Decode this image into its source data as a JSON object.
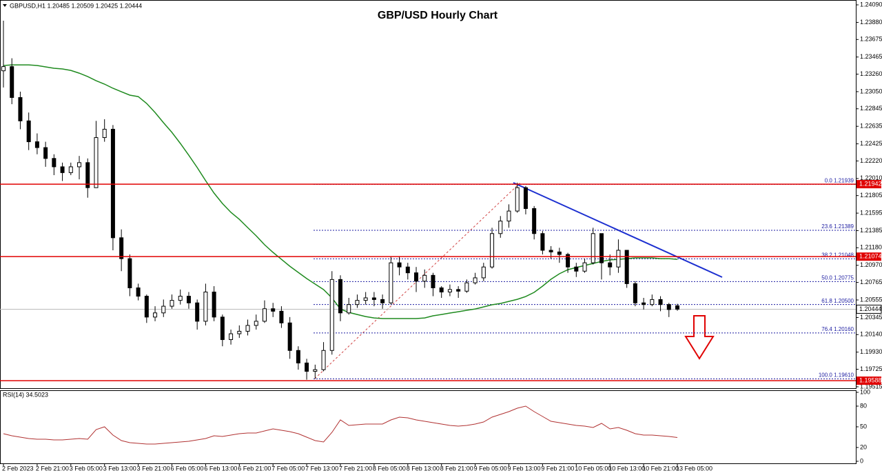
{
  "header": "GBPUSD,H1  1.20485 1.20509 1.20425 1.20444",
  "chart_data": [
    {
      "type": "candlestick",
      "title": "GBP/USD Hourly Chart",
      "categories": [
        "2 Feb 2023",
        null,
        null,
        null,
        "2 Feb 21:00",
        null,
        null,
        null,
        "3 Feb 05:00",
        null,
        null,
        null,
        "3 Feb 13:00",
        null,
        null,
        null,
        "3 Feb 21:00",
        null,
        null,
        null,
        "6 Feb 05:00",
        null,
        null,
        null,
        "6 Feb 13:00",
        null,
        null,
        null,
        "6 Feb 21:00",
        null,
        null,
        null,
        "7 Feb 05:00",
        null,
        null,
        null,
        "7 Feb 13:00",
        null,
        null,
        null,
        "7 Feb 21:00",
        null,
        null,
        null,
        "8 Feb 05:00",
        null,
        null,
        null,
        "8 Feb 13:00",
        null,
        null,
        null,
        "8 Feb 21:00",
        null,
        null,
        null,
        "9 Feb 05:00",
        null,
        null,
        null,
        "9 Feb 13:00",
        null,
        null,
        null,
        "9 Feb 21:00",
        null,
        null,
        null,
        "10 Feb 05:00",
        null,
        null,
        null,
        "10 Feb 13:00",
        null,
        null,
        null,
        "10 Feb 21:00",
        null,
        null,
        null,
        "13 Feb 05:00"
      ],
      "ohlc": [
        [
          1.233,
          1.239,
          1.231,
          1.2335
        ],
        [
          1.2335,
          1.2345,
          1.229,
          1.2298
        ],
        [
          1.2298,
          1.2305,
          1.226,
          1.227
        ],
        [
          1.227,
          1.228,
          1.2235,
          1.2245
        ],
        [
          1.2245,
          1.2255,
          1.223,
          1.2238
        ],
        [
          1.2238,
          1.2245,
          1.2215,
          1.2225
        ],
        [
          1.2225,
          1.223,
          1.2205,
          1.2215
        ],
        [
          1.2215,
          1.222,
          1.2198,
          1.2208
        ],
        [
          1.2208,
          1.222,
          1.2205,
          1.2215
        ],
        [
          1.2215,
          1.2228,
          1.22,
          1.222
        ],
        [
          1.222,
          1.2225,
          1.2178,
          1.219
        ],
        [
          1.219,
          1.227,
          1.219,
          1.225
        ],
        [
          1.225,
          1.2272,
          1.2245,
          1.226
        ],
        [
          1.226,
          1.2265,
          1.2115,
          1.213
        ],
        [
          1.213,
          1.214,
          1.209,
          1.2105
        ],
        [
          1.2105,
          1.211,
          1.206,
          1.207
        ],
        [
          1.207,
          1.2075,
          1.2055,
          1.206
        ],
        [
          1.206,
          1.2062,
          1.2028,
          1.2035
        ],
        [
          1.2035,
          1.2048,
          1.203,
          1.204
        ],
        [
          1.204,
          1.2056,
          1.2035,
          1.2048
        ],
        [
          1.2048,
          1.2062,
          1.2045,
          1.2055
        ],
        [
          1.2055,
          1.2068,
          1.205,
          1.206
        ],
        [
          1.206,
          1.2065,
          1.2045,
          1.2052
        ],
        [
          1.2052,
          1.2056,
          1.202,
          1.203
        ],
        [
          1.203,
          1.2075,
          1.2025,
          1.2065
        ],
        [
          1.2065,
          1.2072,
          1.203,
          1.2035
        ],
        [
          1.2035,
          1.2038,
          1.2,
          1.2008
        ],
        [
          1.2008,
          1.202,
          1.2002,
          1.2015
        ],
        [
          1.2015,
          1.2025,
          1.201,
          1.2018
        ],
        [
          1.2018,
          1.2032,
          1.2013,
          1.2025
        ],
        [
          1.2025,
          1.2038,
          1.202,
          1.203
        ],
        [
          1.203,
          1.2055,
          1.2028,
          1.2045
        ],
        [
          1.2045,
          1.2052,
          1.2035,
          1.2042
        ],
        [
          1.2042,
          1.2048,
          1.2022,
          1.2028
        ],
        [
          1.2028,
          1.2035,
          1.1985,
          1.1995
        ],
        [
          1.1995,
          1.2,
          1.1972,
          1.198
        ],
        [
          1.198,
          1.1985,
          1.196,
          1.197
        ],
        [
          1.197,
          1.1978,
          1.1961,
          1.1972
        ],
        [
          1.1972,
          1.2005,
          1.197,
          1.1995
        ],
        [
          1.1995,
          1.209,
          1.199,
          1.208
        ],
        [
          1.208,
          1.2085,
          1.203,
          1.204
        ],
        [
          1.204,
          1.2058,
          1.2038,
          1.205
        ],
        [
          1.205,
          1.2062,
          1.2046,
          1.2055
        ],
        [
          1.2055,
          1.2065,
          1.205,
          1.2058
        ],
        [
          1.2058,
          1.2065,
          1.2048,
          1.2056
        ],
        [
          1.2056,
          1.2062,
          1.2045,
          1.2052
        ],
        [
          1.2052,
          1.2108,
          1.205,
          1.21
        ],
        [
          1.21,
          1.2108,
          1.2085,
          1.2095
        ],
        [
          1.2095,
          1.21,
          1.208,
          1.2088
        ],
        [
          1.2088,
          1.2095,
          1.2065,
          1.2078
        ],
        [
          1.2078,
          1.2092,
          1.207,
          1.2085
        ],
        [
          1.2085,
          1.2088,
          1.206,
          1.207
        ],
        [
          1.207,
          1.2072,
          1.2058,
          1.2065
        ],
        [
          1.2065,
          1.2074,
          1.206,
          1.2068
        ],
        [
          1.2068,
          1.2072,
          1.2058,
          1.2066
        ],
        [
          1.2066,
          1.208,
          1.2064,
          1.2076
        ],
        [
          1.2076,
          1.2088,
          1.2074,
          1.2082
        ],
        [
          1.2082,
          1.21,
          1.2078,
          1.2095
        ],
        [
          1.2095,
          1.2142,
          1.2093,
          1.2135
        ],
        [
          1.2135,
          1.2156,
          1.213,
          1.215
        ],
        [
          1.215,
          1.217,
          1.2142,
          1.2162
        ],
        [
          1.2162,
          1.2196,
          1.216,
          1.219
        ],
        [
          1.219,
          1.2192,
          1.2158,
          1.2165
        ],
        [
          1.2165,
          1.2168,
          1.2128,
          1.2135
        ],
        [
          1.2135,
          1.2138,
          1.211,
          1.2115
        ],
        [
          1.2115,
          1.212,
          1.2105,
          1.2113
        ],
        [
          1.2113,
          1.2118,
          1.21,
          1.211
        ],
        [
          1.211,
          1.2112,
          1.2088,
          1.2095
        ],
        [
          1.2095,
          1.21,
          1.2083,
          1.209
        ],
        [
          1.209,
          1.2105,
          1.2088,
          1.21
        ],
        [
          1.21,
          1.2142,
          1.2098,
          1.2135
        ],
        [
          1.2135,
          1.2135,
          1.208,
          1.21
        ],
        [
          1.21,
          1.211,
          1.2085,
          1.2095
        ],
        [
          1.2095,
          1.2128,
          1.2088,
          1.2115
        ],
        [
          1.2115,
          1.2115,
          1.207,
          1.2075
        ],
        [
          1.2075,
          1.2078,
          1.2048,
          1.2052
        ],
        [
          1.2052,
          1.2058,
          1.2044,
          1.205
        ],
        [
          1.205,
          1.2062,
          1.2048,
          1.2056
        ],
        [
          1.2056,
          1.206,
          1.2042,
          1.205
        ],
        [
          1.205,
          1.2052,
          1.2035,
          1.2044
        ],
        [
          1.20485,
          1.20509,
          1.20425,
          1.20444
        ]
      ],
      "ma": [
        1.23363,
        1.23371,
        1.23371,
        1.23371,
        1.23363,
        1.23347,
        1.2333,
        1.23322,
        1.23305,
        1.23272,
        1.23231,
        1.23181,
        1.2314,
        1.23091,
        1.23049,
        1.23008,
        1.22991,
        1.22909,
        1.22801,
        1.22678,
        1.22562,
        1.2243,
        1.22289,
        1.22141,
        1.21984,
        1.21835,
        1.21711,
        1.21604,
        1.21521,
        1.21422,
        1.21323,
        1.21216,
        1.21125,
        1.21042,
        1.20959,
        1.20885,
        1.20811,
        1.20745,
        1.20679,
        1.20579,
        1.20447,
        1.20406,
        1.20381,
        1.20356,
        1.2034,
        1.20332,
        1.20332,
        1.20332,
        1.20332,
        1.20332,
        1.2034,
        1.20365,
        1.20381,
        1.20398,
        1.20414,
        1.20431,
        1.20447,
        1.20472,
        1.20497,
        1.20513,
        1.20538,
        1.20563,
        1.20596,
        1.20646,
        1.2072,
        1.20803,
        1.20869,
        1.20918,
        1.20943,
        1.20968,
        1.20992,
        1.21017,
        1.21034,
        1.21042,
        1.2105,
        1.21059,
        1.21059,
        1.21059,
        1.2105,
        1.2105,
        1.21042
      ],
      "ma_color": "#1e8a1e",
      "ylim": [
        1.19498,
        1.24148
      ],
      "yticks": [
        {
          "value": 1.2409,
          "label": "1.24090"
        },
        {
          "value": 1.2388,
          "label": "1.23880"
        },
        1.23675,
        1.23465,
        {
          "value": 1.2326,
          "label": "1.23260"
        },
        {
          "value": 1.2305,
          "label": "1.23050"
        },
        1.22845,
        1.22635,
        1.22425,
        {
          "value": 1.2222,
          "label": "1.22220"
        },
        {
          "value": 1.2201,
          "label": "1.22010"
        },
        1.21805,
        1.21595,
        1.21385,
        {
          "value": 1.2118,
          "label": "1.21180"
        },
        {
          "value": 1.2097,
          "label": "1.20970"
        },
        1.20765,
        1.20555,
        1.20345,
        {
          "value": 1.2014,
          "label": "1.20140"
        },
        {
          "value": 1.1993,
          "label": "1.19930"
        },
        1.19725,
        1.19515
      ],
      "levels": [
        1.21942,
        1.21074,
        1.19588
      ],
      "level_color": "#e00000",
      "fib_levels": [
        {
          "value": 1.21939,
          "label": "0.0 1.21939"
        },
        {
          "value": 1.21389,
          "label": "23.6 1.21389"
        },
        {
          "value": 1.21048,
          "label": "38.2 1.21048"
        },
        {
          "value": 1.20775,
          "label": "50.0 1.20775"
        },
        {
          "value": 1.205,
          "label": "61.8 1.20500"
        },
        {
          "value": 1.2016,
          "label": "76.4 1.20160"
        },
        {
          "value": 1.1961,
          "label": "100.0 1.19610"
        }
      ],
      "fib_color": "#1a1aa0",
      "current_price": 1.20444
    },
    {
      "type": "line",
      "label": "RSI(14) 34.5023",
      "values": [
        40,
        37,
        35,
        33,
        32,
        32,
        31,
        31,
        32,
        33,
        32,
        46,
        50,
        38,
        30,
        27,
        26,
        25,
        25,
        26,
        27,
        28,
        29,
        31,
        33,
        37,
        36,
        38,
        40,
        41,
        41,
        44,
        47,
        45,
        43,
        40,
        35,
        30,
        28,
        42,
        60,
        52,
        53,
        54,
        54,
        54,
        60,
        64,
        63,
        60,
        58,
        56,
        54,
        52,
        51,
        52,
        54,
        57,
        64,
        68,
        72,
        77,
        80,
        72,
        65,
        58,
        56,
        54,
        52,
        51,
        49,
        55,
        47,
        49,
        45,
        40,
        38,
        38,
        37,
        36,
        34.5023
      ],
      "color": "#b03030",
      "ylim": [
        0,
        100
      ],
      "yticks": [
        100,
        80,
        50,
        20,
        0
      ]
    }
  ]
}
